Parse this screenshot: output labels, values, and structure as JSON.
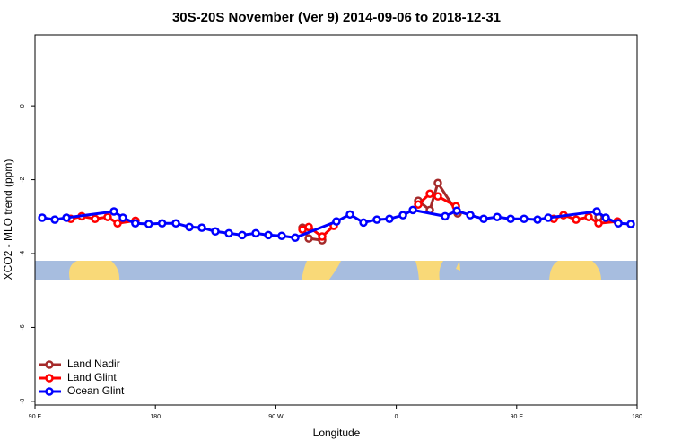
{
  "chart_data": {
    "type": "line",
    "title": "30S-20S November (Ver 9)   2014-09-06 to 2018-12-31",
    "x_label": "Longitude",
    "y_label": "XCO2 - MLO trend (ppm)",
    "xlim": [
      90,
      540
    ],
    "ylim": [
      -8.1,
      1.92
    ],
    "xticks": [
      {
        "value": 90,
        "label": "90 E"
      },
      {
        "value": 180,
        "label": "180"
      },
      {
        "value": 270,
        "label": "90 W"
      },
      {
        "value": 360,
        "label": "0"
      },
      {
        "value": 450,
        "label": "90 E"
      },
      {
        "value": 540,
        "label": "180"
      }
    ],
    "yticks": [
      0,
      -2,
      -4,
      -6,
      -8
    ],
    "legend": "bottom-left",
    "series": [
      {
        "name": "Land Nadir",
        "color": "#a52a2a",
        "x": [
          289.9,
          294.6,
          304.6,
          376.4,
          385.1,
          391.1,
          405.9,
          511.2
        ],
        "values": [
          -3.3,
          -3.59,
          -3.64,
          -2.57,
          -2.82,
          -2.09,
          -2.91,
          -3.01
        ]
      },
      {
        "name": "Land Glint",
        "color": "#ff0000",
        "x": [
          116.8,
          124.9,
          134.9,
          144.3,
          151.7,
          165.1,
          289.9,
          294.6,
          304.6,
          313.3,
          376.4,
          385.1,
          391.1,
          404.6,
          477.7,
          485,
          494.4,
          503.8,
          511.2,
          525.3
        ],
        "values": [
          -3.06,
          -2.99,
          -3.06,
          -3.01,
          -3.18,
          -3.11,
          -3.35,
          -3.28,
          -3.54,
          -3.25,
          -2.67,
          -2.38,
          -2.45,
          -2.72,
          -3.06,
          -2.96,
          -3.08,
          -3.01,
          -3.18,
          -3.13
        ]
      },
      {
        "name": "Ocean Glint",
        "color": "#0000ff",
        "x": [
          95.4,
          104.8,
          113.5,
          149,
          155.7,
          165,
          175,
          185,
          195.3,
          205.4,
          214.7,
          224.8,
          234.9,
          244.9,
          255,
          264.4,
          274.4,
          284.5,
          315.3,
          325.4,
          335.5,
          345.5,
          354.9,
          365,
          372.4,
          396.5,
          405.2,
          415.3,
          425.3,
          435.4,
          445.5,
          455.5,
          465.6,
          473.6,
          509.8,
          516.6,
          526,
          535.3
        ],
        "values": [
          -3.03,
          -3.08,
          -3.03,
          -2.86,
          -3.03,
          -3.18,
          -3.2,
          -3.18,
          -3.18,
          -3.28,
          -3.3,
          -3.4,
          -3.45,
          -3.5,
          -3.45,
          -3.5,
          -3.52,
          -3.57,
          -3.13,
          -2.94,
          -3.16,
          -3.08,
          -3.06,
          -2.96,
          -2.82,
          -2.99,
          -2.84,
          -2.96,
          -3.06,
          -3.01,
          -3.06,
          -3.06,
          -3.08,
          -3.03,
          -2.86,
          -3.03,
          -3.18,
          -3.2
        ]
      }
    ]
  }
}
